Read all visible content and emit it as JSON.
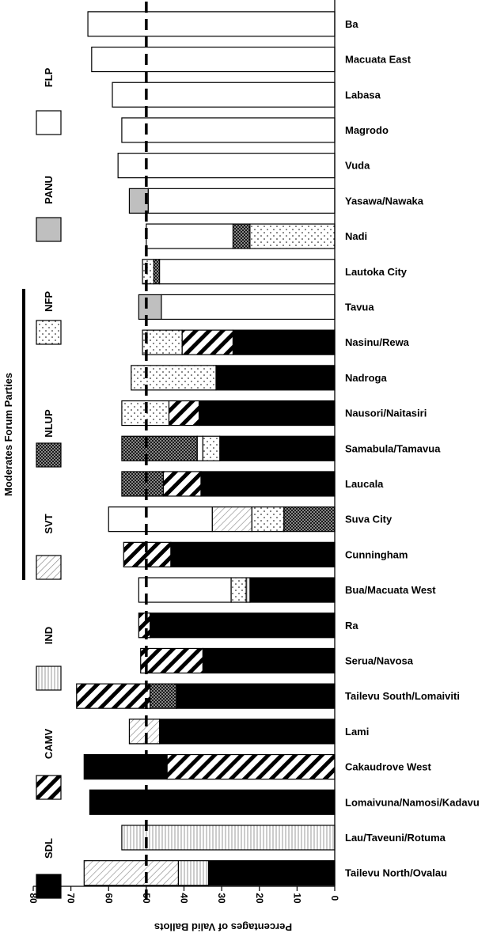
{
  "chart_data": {
    "type": "bar",
    "orientation": "horizontal-stacked",
    "xlabel": "Percentages of Valid Ballots",
    "xlim": [
      80,
      0
    ],
    "xticks": [
      "80",
      "70",
      "60",
      "50",
      "40",
      "30",
      "20",
      "10",
      "0"
    ],
    "reference_line": 50,
    "group_label": "Moderates Forum Parties",
    "legend": [
      {
        "name": "FLP",
        "key": "FLP",
        "pattern": "white"
      },
      {
        "name": "PANU",
        "key": "PANU",
        "pattern": "grey"
      },
      {
        "name": "NFP",
        "key": "NFP",
        "pattern": "dots"
      },
      {
        "name": "NLUP",
        "key": "NLUP",
        "pattern": "dense-dots"
      },
      {
        "name": "SVT",
        "key": "SVT",
        "pattern": "thin-diagonal"
      },
      {
        "name": "IND",
        "key": "IND",
        "pattern": "vertical-lines"
      },
      {
        "name": "CAMV",
        "key": "CAMV",
        "pattern": "thick-diagonal"
      },
      {
        "name": "SDL",
        "key": "SDL",
        "pattern": "black"
      }
    ],
    "constituencies": [
      {
        "name": "Ba",
        "segments": [
          {
            "party": "FLP",
            "value": 65.5
          }
        ]
      },
      {
        "name": "Macuata East",
        "segments": [
          {
            "party": "FLP",
            "value": 64.5
          }
        ]
      },
      {
        "name": "Labasa",
        "segments": [
          {
            "party": "FLP",
            "value": 59
          }
        ]
      },
      {
        "name": "Magrodo",
        "segments": [
          {
            "party": "FLP",
            "value": 56.5
          }
        ]
      },
      {
        "name": "Vuda",
        "segments": [
          {
            "party": "FLP",
            "value": 57.5
          }
        ]
      },
      {
        "name": "Yasawa/Nawaka",
        "segments": [
          {
            "party": "FLP",
            "value": 49.5
          },
          {
            "party": "PANU",
            "value": 5
          }
        ]
      },
      {
        "name": "Nadi",
        "segments": [
          {
            "party": "NFP",
            "value": 22.5
          },
          {
            "party": "NLUP",
            "value": 4.5
          },
          {
            "party": "FLP",
            "value": 23
          }
        ]
      },
      {
        "name": "Lautoka City",
        "segments": [
          {
            "party": "FLP",
            "value": 46.5
          },
          {
            "party": "NLUP",
            "value": 1.5
          },
          {
            "party": "NFP",
            "value": 3
          }
        ]
      },
      {
        "name": "Tavua",
        "segments": [
          {
            "party": "FLP",
            "value": 46
          },
          {
            "party": "PANU",
            "value": 6
          }
        ]
      },
      {
        "name": "Nasinu/Rewa",
        "segments": [
          {
            "party": "SDL",
            "value": 27
          },
          {
            "party": "CAMV",
            "value": 13.5
          },
          {
            "party": "NFP",
            "value": 10.5
          }
        ]
      },
      {
        "name": "Nadroga",
        "segments": [
          {
            "party": "SDL",
            "value": 31.5
          },
          {
            "party": "NFP",
            "value": 22.5
          }
        ]
      },
      {
        "name": "Nausori/Naitasiri",
        "segments": [
          {
            "party": "SDL",
            "value": 36
          },
          {
            "party": "CAMV",
            "value": 8
          },
          {
            "party": "NFP",
            "value": 12.5
          }
        ]
      },
      {
        "name": "Samabula/Tamavua",
        "segments": [
          {
            "party": "SDL",
            "value": 30.5
          },
          {
            "party": "NFP",
            "value": 4.5
          },
          {
            "party": "FLP",
            "value": 1.5
          },
          {
            "party": "NLUP",
            "value": 20
          }
        ]
      },
      {
        "name": "Laucala",
        "segments": [
          {
            "party": "SDL",
            "value": 35.5
          },
          {
            "party": "CAMV",
            "value": 10
          },
          {
            "party": "NLUP",
            "value": 11
          }
        ]
      },
      {
        "name": "Suva City",
        "segments": [
          {
            "party": "NLUP",
            "value": 13.5
          },
          {
            "party": "NFP",
            "value": 8.5
          },
          {
            "party": "SVT",
            "value": 10.5
          },
          {
            "party": "FLP",
            "value": 27.5
          }
        ]
      },
      {
        "name": "Cunningham",
        "segments": [
          {
            "party": "SDL",
            "value": 43.5
          },
          {
            "party": "CAMV",
            "value": 12.5
          }
        ]
      },
      {
        "name": "Bua/Macuata West",
        "segments": [
          {
            "party": "SDL",
            "value": 22.5
          },
          {
            "party": "IND",
            "value": 1
          },
          {
            "party": "NFP",
            "value": 4
          },
          {
            "party": "FLP",
            "value": 24.5
          }
        ]
      },
      {
        "name": "Ra",
        "segments": [
          {
            "party": "SDL",
            "value": 49
          },
          {
            "party": "CAMV",
            "value": 3
          }
        ]
      },
      {
        "name": "Serua/Navosa",
        "segments": [
          {
            "party": "SDL",
            "value": 35
          },
          {
            "party": "CAMV",
            "value": 16.5
          }
        ]
      },
      {
        "name": "Tailevu South/Lomaiviti",
        "segments": [
          {
            "party": "SDL",
            "value": 42
          },
          {
            "party": "NLUP",
            "value": 7
          },
          {
            "party": "CAMV",
            "value": 19.5
          }
        ]
      },
      {
        "name": "Lami",
        "segments": [
          {
            "party": "SDL",
            "value": 46.5
          },
          {
            "party": "SVT",
            "value": 8
          }
        ]
      },
      {
        "name": "Cakaudrove West",
        "segments": [
          {
            "party": "CAMV",
            "value": 44.5
          },
          {
            "party": "SDL",
            "value": 22
          }
        ]
      },
      {
        "name": "Lomaivuna/Namosi/Kadavu",
        "segments": [
          {
            "party": "SDL",
            "value": 65
          }
        ]
      },
      {
        "name": "Lau/Taveuni/Rotuma",
        "segments": [
          {
            "party": "IND",
            "value": 56.5
          }
        ]
      },
      {
        "name": "Tailevu North/Ovalau",
        "segments": [
          {
            "party": "SDL",
            "value": 33.5
          },
          {
            "party": "IND",
            "value": 8
          },
          {
            "party": "SVT",
            "value": 25
          }
        ]
      }
    ]
  }
}
